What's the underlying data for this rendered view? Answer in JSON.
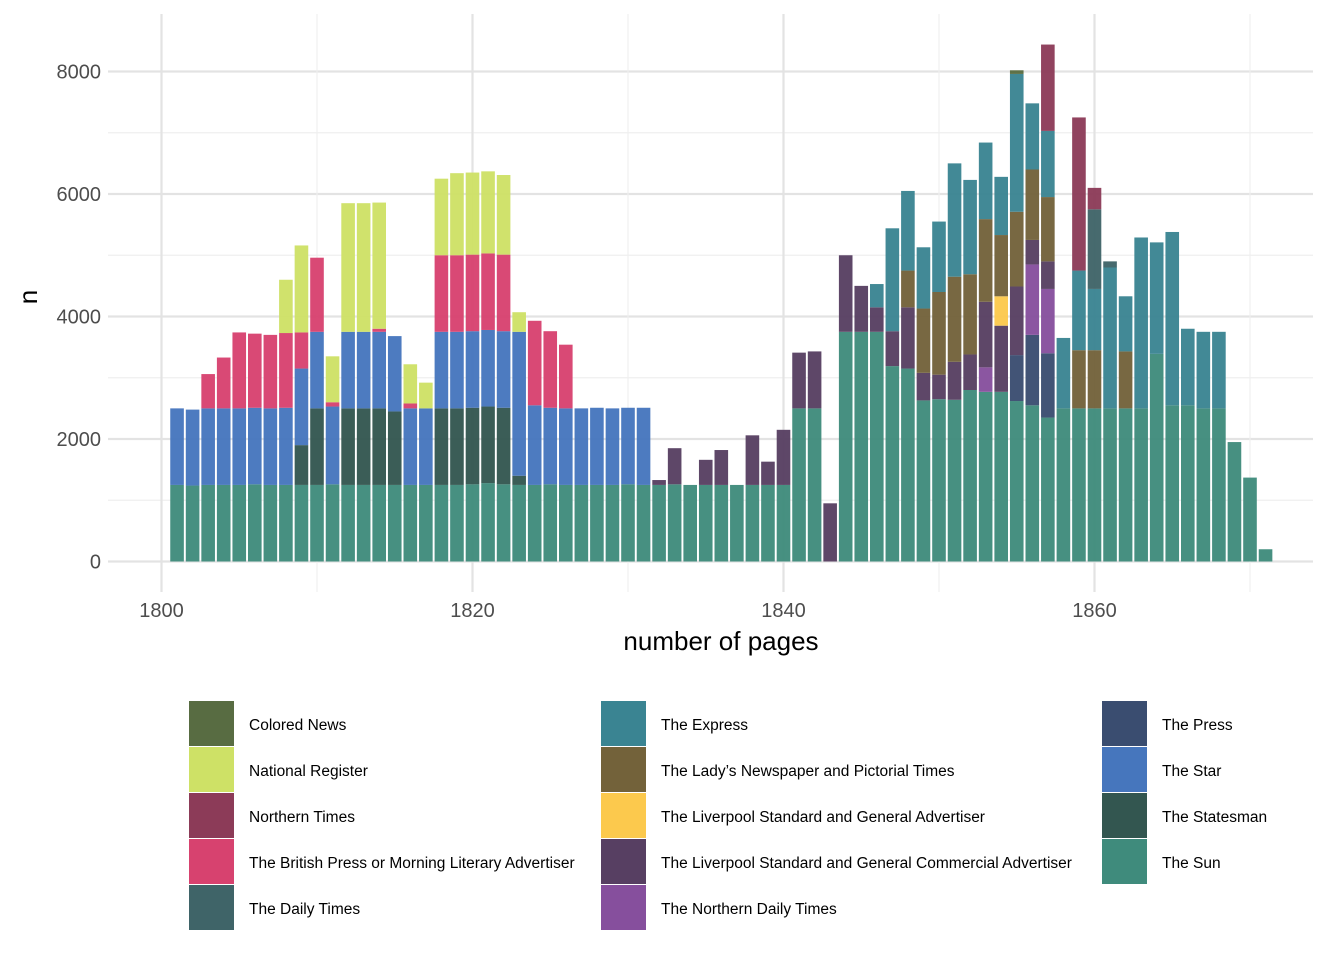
{
  "chart_data": {
    "type": "bar",
    "stacked": true,
    "xlabel": "number of pages",
    "ylabel": "n",
    "xlim": [
      1800,
      1871
    ],
    "ylim": [
      0,
      8500
    ],
    "x_ticks": [
      1800,
      1820,
      1840,
      1860
    ],
    "y_ticks": [
      0,
      2000,
      4000,
      6000,
      8000
    ],
    "grid": true,
    "legend_position": "bottom",
    "stack_order": [
      "The Sun",
      "The Statesman",
      "The Star",
      "The Press",
      "The Northern Daily Times",
      "The Liverpool Standard and General Commercial Advertiser",
      "The Liverpool Standard and General Advertiser",
      "The Lady’s Newspaper and Pictorial Times",
      "The Express",
      "The Daily Times",
      "The British Press or Morning Literary Advertiser",
      "Northern Times",
      "National Register",
      "Colored News"
    ],
    "x": [
      1801,
      1802,
      1803,
      1804,
      1805,
      1806,
      1807,
      1808,
      1809,
      1810,
      1811,
      1812,
      1813,
      1814,
      1815,
      1816,
      1817,
      1818,
      1819,
      1820,
      1821,
      1822,
      1823,
      1824,
      1825,
      1826,
      1827,
      1828,
      1829,
      1830,
      1831,
      1832,
      1833,
      1834,
      1835,
      1836,
      1837,
      1838,
      1839,
      1840,
      1841,
      1842,
      1843,
      1844,
      1845,
      1846,
      1847,
      1848,
      1849,
      1850,
      1851,
      1852,
      1853,
      1854,
      1855,
      1856,
      1857,
      1858,
      1859,
      1860,
      1861,
      1862,
      1863,
      1864,
      1865,
      1866,
      1867,
      1868,
      1869,
      1870,
      1871
    ],
    "series": [
      {
        "name": "The Sun",
        "color": "#3f8b7c",
        "values": [
          1250,
          1240,
          1250,
          1250,
          1250,
          1260,
          1250,
          1250,
          1250,
          1250,
          1260,
          1250,
          1250,
          1250,
          1250,
          1250,
          1250,
          1250,
          1250,
          1260,
          1280,
          1260,
          1250,
          1250,
          1260,
          1250,
          1250,
          1250,
          1250,
          1260,
          1250,
          1250,
          1260,
          1250,
          1250,
          1250,
          1250,
          1250,
          1250,
          1250,
          2500,
          2500,
          0,
          3750,
          3750,
          3750,
          3190,
          3150,
          2630,
          2650,
          2640,
          2800,
          2770,
          2770,
          2620,
          2550,
          2350,
          2500,
          2500,
          2500,
          2500,
          2500,
          2500,
          3390,
          2550,
          2550,
          2500,
          2500,
          1950,
          1370,
          200
        ]
      },
      {
        "name": "The Statesman",
        "color": "#335650",
        "values": [
          0,
          0,
          0,
          0,
          0,
          0,
          0,
          0,
          650,
          1250,
          0,
          1250,
          1250,
          1250,
          1200,
          0,
          0,
          1250,
          1250,
          1250,
          1250,
          1250,
          150,
          0,
          0,
          0,
          0,
          0,
          0,
          0,
          0,
          0,
          0,
          0,
          0,
          0,
          0,
          0,
          0,
          0,
          0,
          0,
          0,
          0,
          0,
          0,
          0,
          0,
          0,
          0,
          0,
          0,
          0,
          0,
          0,
          0,
          0,
          0,
          0,
          0,
          0,
          0,
          0,
          0,
          0,
          0,
          0,
          0,
          0,
          0,
          0
        ]
      },
      {
        "name": "The Star",
        "color": "#4676bd",
        "values": [
          1250,
          1240,
          1250,
          1250,
          1250,
          1250,
          1250,
          1260,
          1250,
          1250,
          1270,
          1250,
          1250,
          1250,
          1230,
          1250,
          1250,
          1250,
          1250,
          1250,
          1250,
          1250,
          2350,
          1300,
          1250,
          1250,
          1250,
          1260,
          1250,
          1250,
          1260,
          0,
          0,
          0,
          0,
          0,
          0,
          0,
          0,
          0,
          0,
          0,
          0,
          0,
          0,
          0,
          0,
          0,
          0,
          0,
          0,
          0,
          0,
          0,
          0,
          0,
          0,
          0,
          0,
          0,
          0,
          0,
          0,
          0,
          0,
          0,
          0,
          0,
          0,
          0,
          0
        ]
      },
      {
        "name": "The Press",
        "color": "#3a4d70",
        "values": [
          0,
          0,
          0,
          0,
          0,
          0,
          0,
          0,
          0,
          0,
          0,
          0,
          0,
          0,
          0,
          0,
          0,
          0,
          0,
          0,
          0,
          0,
          0,
          0,
          0,
          0,
          0,
          0,
          0,
          0,
          0,
          0,
          0,
          0,
          0,
          0,
          0,
          0,
          0,
          0,
          0,
          0,
          0,
          0,
          0,
          0,
          0,
          0,
          0,
          0,
          0,
          0,
          0,
          0,
          750,
          1150,
          1050,
          0,
          0,
          0,
          0,
          0,
          0,
          0,
          0,
          0,
          0,
          0,
          0,
          0,
          0
        ]
      },
      {
        "name": "The Northern Daily Times",
        "color": "#864f9d",
        "values": [
          0,
          0,
          0,
          0,
          0,
          0,
          0,
          0,
          0,
          0,
          0,
          0,
          0,
          0,
          0,
          0,
          0,
          0,
          0,
          0,
          0,
          0,
          0,
          0,
          0,
          0,
          0,
          0,
          0,
          0,
          0,
          0,
          0,
          0,
          0,
          0,
          0,
          0,
          0,
          0,
          0,
          0,
          0,
          0,
          0,
          0,
          0,
          0,
          0,
          0,
          0,
          0,
          400,
          0,
          0,
          1150,
          1050,
          0,
          0,
          0,
          0,
          0,
          0,
          0,
          0,
          0,
          0,
          0,
          0,
          0,
          0
        ]
      },
      {
        "name": "The Liverpool Standard and General Commercial Advertiser",
        "color": "#573f62",
        "values": [
          0,
          0,
          0,
          0,
          0,
          0,
          0,
          0,
          0,
          0,
          0,
          0,
          0,
          0,
          0,
          0,
          0,
          0,
          0,
          0,
          0,
          0,
          0,
          0,
          0,
          0,
          0,
          0,
          0,
          0,
          0,
          80,
          590,
          0,
          410,
          570,
          0,
          810,
          380,
          900,
          910,
          930,
          950,
          1250,
          750,
          400,
          570,
          1000,
          450,
          400,
          620,
          580,
          1070,
          1080,
          1120,
          400,
          450,
          0,
          0,
          0,
          0,
          0,
          0,
          0,
          0,
          0,
          0,
          0,
          0,
          0,
          0
        ]
      },
      {
        "name": "The Liverpool Standard and General Advertiser",
        "color": "#fcc94d",
        "values": [
          0,
          0,
          0,
          0,
          0,
          0,
          0,
          0,
          0,
          0,
          0,
          0,
          0,
          0,
          0,
          0,
          0,
          0,
          0,
          0,
          0,
          0,
          0,
          0,
          0,
          0,
          0,
          0,
          0,
          0,
          0,
          0,
          0,
          0,
          0,
          0,
          0,
          0,
          0,
          0,
          0,
          0,
          0,
          0,
          0,
          0,
          0,
          0,
          0,
          0,
          0,
          0,
          0,
          480,
          0,
          0,
          0,
          0,
          0,
          0,
          0,
          0,
          0,
          0,
          0,
          0,
          0,
          0,
          0,
          0,
          0
        ]
      },
      {
        "name": "The Lady’s Newspaper and Pictorial Times",
        "color": "#73623a",
        "values": [
          0,
          0,
          0,
          0,
          0,
          0,
          0,
          0,
          0,
          0,
          0,
          0,
          0,
          0,
          0,
          0,
          0,
          0,
          0,
          0,
          0,
          0,
          0,
          0,
          0,
          0,
          0,
          0,
          0,
          0,
          0,
          0,
          0,
          0,
          0,
          0,
          0,
          0,
          0,
          0,
          0,
          0,
          0,
          0,
          0,
          0,
          0,
          600,
          1050,
          1350,
          1390,
          1310,
          1350,
          1000,
          1220,
          1150,
          1050,
          0,
          950,
          950,
          0,
          930,
          0,
          0,
          0,
          0,
          0,
          0,
          0,
          0,
          0
        ]
      },
      {
        "name": "The Express",
        "color": "#3a8492",
        "values": [
          0,
          0,
          0,
          0,
          0,
          0,
          0,
          0,
          0,
          0,
          0,
          0,
          0,
          0,
          0,
          0,
          0,
          0,
          0,
          0,
          0,
          0,
          0,
          0,
          0,
          0,
          0,
          0,
          0,
          0,
          0,
          0,
          0,
          0,
          0,
          0,
          0,
          0,
          0,
          0,
          0,
          0,
          0,
          0,
          0,
          380,
          1680,
          1300,
          1000,
          1150,
          1850,
          1540,
          1250,
          950,
          2250,
          1080,
          1080,
          1150,
          1300,
          1000,
          2300,
          900,
          2790,
          1820,
          2830,
          1250,
          1250,
          1250,
          0,
          0,
          0
        ]
      },
      {
        "name": "The Daily Times",
        "color": "#3f6468",
        "values": [
          0,
          0,
          0,
          0,
          0,
          0,
          0,
          0,
          0,
          0,
          0,
          0,
          0,
          0,
          0,
          0,
          0,
          0,
          0,
          0,
          0,
          0,
          0,
          0,
          0,
          0,
          0,
          0,
          0,
          0,
          0,
          0,
          0,
          0,
          0,
          0,
          0,
          0,
          0,
          0,
          0,
          0,
          0,
          0,
          0,
          0,
          0,
          0,
          0,
          0,
          0,
          0,
          0,
          0,
          0,
          0,
          0,
          0,
          0,
          1300,
          100,
          0,
          0,
          0,
          0,
          0,
          0,
          0,
          0,
          0,
          0
        ]
      },
      {
        "name": "The British Press or Morning Literary Advertiser",
        "color": "#d7426f",
        "values": [
          0,
          0,
          560,
          830,
          1240,
          1210,
          1200,
          1220,
          590,
          1210,
          70,
          0,
          0,
          50,
          0,
          80,
          0,
          1250,
          1250,
          1250,
          1250,
          1250,
          0,
          1380,
          1250,
          1040,
          0,
          0,
          0,
          0,
          0,
          0,
          0,
          0,
          0,
          0,
          0,
          0,
          0,
          0,
          0,
          0,
          0,
          0,
          0,
          0,
          0,
          0,
          0,
          0,
          0,
          0,
          0,
          0,
          0,
          0,
          0,
          0,
          0,
          0,
          0,
          0,
          0,
          0,
          0,
          0,
          0,
          0,
          0,
          0,
          0
        ]
      },
      {
        "name": "Northern Times",
        "color": "#8c3b58",
        "values": [
          0,
          0,
          0,
          0,
          0,
          0,
          0,
          0,
          0,
          0,
          0,
          0,
          0,
          0,
          0,
          0,
          0,
          0,
          0,
          0,
          0,
          0,
          0,
          0,
          0,
          0,
          0,
          0,
          0,
          0,
          0,
          0,
          0,
          0,
          0,
          0,
          0,
          0,
          0,
          0,
          0,
          0,
          0,
          0,
          0,
          0,
          0,
          0,
          0,
          0,
          0,
          0,
          0,
          0,
          0,
          0,
          1410,
          0,
          2500,
          350,
          0,
          0,
          0,
          0,
          0,
          0,
          0,
          0,
          0,
          0,
          0
        ]
      },
      {
        "name": "National Register",
        "color": "#cee166",
        "values": [
          0,
          0,
          0,
          0,
          0,
          0,
          0,
          870,
          1420,
          0,
          750,
          2100,
          2100,
          2060,
          0,
          640,
          420,
          1250,
          1340,
          1340,
          1340,
          1300,
          320,
          0,
          0,
          0,
          0,
          0,
          0,
          0,
          0,
          0,
          0,
          0,
          0,
          0,
          0,
          0,
          0,
          0,
          0,
          0,
          0,
          0,
          0,
          0,
          0,
          0,
          0,
          0,
          0,
          0,
          0,
          0,
          0,
          0,
          0,
          0,
          0,
          0,
          0,
          0,
          0,
          0,
          0,
          0,
          0,
          0,
          0,
          0,
          0
        ]
      },
      {
        "name": "Colored News",
        "color": "#586c42",
        "values": [
          0,
          0,
          0,
          0,
          0,
          0,
          0,
          0,
          0,
          0,
          0,
          0,
          0,
          0,
          0,
          0,
          0,
          0,
          0,
          0,
          0,
          0,
          0,
          0,
          0,
          0,
          0,
          0,
          0,
          0,
          0,
          0,
          0,
          0,
          0,
          0,
          0,
          0,
          0,
          0,
          0,
          0,
          0,
          0,
          0,
          0,
          0,
          0,
          0,
          0,
          0,
          0,
          0,
          0,
          60,
          0,
          0,
          0,
          0,
          0,
          0,
          0,
          0,
          0,
          0,
          0,
          0,
          0,
          0,
          0,
          0
        ]
      }
    ],
    "legend_columns": [
      [
        "Colored News",
        "National Register",
        "Northern Times",
        "The British Press or Morning Literary Advertiser",
        "The Daily Times"
      ],
      [
        "The Express",
        "The Lady’s Newspaper and Pictorial Times",
        "The Liverpool Standard and General Advertiser",
        "The Liverpool Standard and General Commercial Advertiser",
        "The Northern Daily Times"
      ],
      [
        "The Press",
        "The Star",
        "The Statesman",
        "The Sun"
      ]
    ]
  }
}
